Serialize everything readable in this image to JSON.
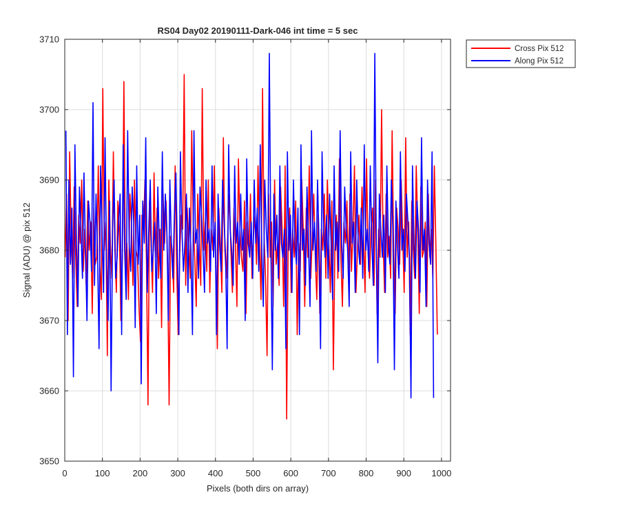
{
  "chart_data": {
    "type": "line",
    "title": "RS04 Day02 20190111-Dark-046 int time = 5 sec",
    "xlabel": "Pixels (both dirs on array)",
    "ylabel": "Signal (ADU) @ pix 512",
    "xlim": [
      0,
      1024
    ],
    "ylim": [
      3650,
      3710
    ],
    "xticks": [
      0,
      100,
      200,
      300,
      400,
      500,
      600,
      700,
      800,
      900,
      1000
    ],
    "yticks": [
      3650,
      3660,
      3670,
      3680,
      3690,
      3700,
      3710
    ],
    "grid": true,
    "legend_position": "outside-top-right",
    "series": [
      {
        "name": "Cross Pix 512",
        "color": "#ff0000",
        "x_start": 1,
        "x_step": 4,
        "values": [
          3679,
          3688,
          3670,
          3694,
          3682,
          3676,
          3689,
          3679,
          3672,
          3685,
          3681,
          3690,
          3677,
          3683,
          3675,
          3687,
          3680,
          3684,
          3671,
          3686,
          3678,
          3679,
          3692,
          3678,
          3673,
          3703,
          3680,
          3684,
          3665,
          3690,
          3681,
          3676,
          3694,
          3680,
          3674,
          3687,
          3683,
          3670,
          3679,
          3704,
          3677,
          3681,
          3673,
          3688,
          3684,
          3675,
          3690,
          3680,
          3679,
          3672,
          3667,
          3685,
          3683,
          3690,
          3678,
          3658,
          3687,
          3681,
          3674,
          3691,
          3679,
          3686,
          3676,
          3683,
          3669,
          3688,
          3681,
          3687,
          3678,
          3658,
          3682,
          3680,
          3674,
          3692,
          3678,
          3668,
          3679,
          3685,
          3683,
          3705,
          3675,
          3686,
          3681,
          3676,
          3697,
          3684,
          3679,
          3672,
          3688,
          3681,
          3675,
          3703,
          3680,
          3684,
          3677,
          3690,
          3674,
          3683,
          3680,
          3692,
          3678,
          3666,
          3686,
          3681,
          3674,
          3696,
          3680,
          3676,
          3683,
          3688,
          3680,
          3674,
          3686,
          3681,
          3672,
          3693,
          3683,
          3679,
          3677,
          3687,
          3671,
          3684,
          3680,
          3688,
          3676,
          3682,
          3685,
          3678,
          3692,
          3681,
          3673,
          3703,
          3682,
          3676,
          3665,
          3688,
          3679,
          3684,
          3672,
          3690,
          3678,
          3681,
          3675,
          3689,
          3683,
          3672,
          3692,
          3656,
          3681,
          3686,
          3674,
          3683,
          3679,
          3687,
          3668,
          3681,
          3677,
          3690,
          3683,
          3672,
          3686,
          3679,
          3692,
          3676,
          3682,
          3688,
          3679,
          3673,
          3685,
          3671,
          3683,
          3680,
          3688,
          3676,
          3690,
          3681,
          3674,
          3687,
          3663,
          3680,
          3685,
          3676,
          3693,
          3679,
          3672,
          3684,
          3681,
          3687,
          3676,
          3688,
          3677,
          3683,
          3692,
          3674,
          3680,
          3685,
          3678,
          3689,
          3682,
          3674,
          3693,
          3680,
          3676,
          3683,
          3686,
          3675,
          3690,
          3671,
          3683,
          3679,
          3700,
          3681,
          3674,
          3688,
          3679,
          3682,
          3676,
          3697,
          3680,
          3671,
          3686,
          3683,
          3678,
          3690,
          3682,
          3674,
          3696,
          3679,
          3684,
          3668,
          3687,
          3680,
          3676,
          3692,
          3683,
          3671,
          3689,
          3679,
          3680,
          3684,
          3672,
          3688,
          3679,
          3683,
          3676,
          3692,
          3681,
          3668
        ]
      },
      {
        "name": "Along Pix 512",
        "color": "#0000ff",
        "x_start": 3,
        "x_step": 4,
        "values": [
          3697,
          3668,
          3690,
          3678,
          3686,
          3662,
          3695,
          3681,
          3672,
          3689,
          3683,
          3676,
          3691,
          3680,
          3670,
          3687,
          3684,
          3677,
          3701,
          3675,
          3688,
          3680,
          3666,
          3692,
          3683,
          3674,
          3696,
          3678,
          3670,
          3687,
          3660,
          3683,
          3690,
          3676,
          3679,
          3684,
          3688,
          3668,
          3695,
          3680,
          3673,
          3697,
          3681,
          3677,
          3689,
          3684,
          3669,
          3692,
          3678,
          3685,
          3661,
          3687,
          3681,
          3696,
          3674,
          3683,
          3690,
          3677,
          3680,
          3684,
          3671,
          3689,
          3681,
          3676,
          3694,
          3680,
          3688,
          3683,
          3670,
          3690,
          3681,
          3676,
          3685,
          3691,
          3679,
          3668,
          3694,
          3683,
          3677,
          3681,
          3688,
          3674,
          3686,
          3680,
          3668,
          3697,
          3681,
          3683,
          3676,
          3689,
          3685,
          3680,
          3674,
          3690,
          3681,
          3683,
          3677,
          3692,
          3679,
          3684,
          3668,
          3688,
          3681,
          3677,
          3690,
          3684,
          3679,
          3666,
          3695,
          3683,
          3680,
          3675,
          3692,
          3681,
          3684,
          3678,
          3688,
          3680,
          3683,
          3670,
          3693,
          3681,
          3679,
          3684,
          3676,
          3690,
          3681,
          3686,
          3677,
          3695,
          3680,
          3672,
          3690,
          3683,
          3679,
          3708,
          3681,
          3663,
          3688,
          3680,
          3685,
          3676,
          3692,
          3681,
          3679,
          3683,
          3666,
          3694,
          3680,
          3685,
          3674,
          3690,
          3681,
          3678,
          3686,
          3668,
          3695,
          3680,
          3683,
          3675,
          3689,
          3681,
          3672,
          3697,
          3680,
          3684,
          3677,
          3690,
          3681,
          3666,
          3694,
          3683,
          3679,
          3685,
          3676,
          3688,
          3681,
          3673,
          3692,
          3680,
          3684,
          3677,
          3697,
          3681,
          3676,
          3689,
          3683,
          3680,
          3672,
          3694,
          3681,
          3684,
          3674,
          3690,
          3681,
          3678,
          3686,
          3676,
          3695,
          3680,
          3683,
          3677,
          3692,
          3681,
          3675,
          3708,
          3680,
          3664,
          3688,
          3683,
          3679,
          3685,
          3674,
          3692,
          3681,
          3678,
          3690,
          3683,
          3663,
          3687,
          3681,
          3676,
          3694,
          3680,
          3683,
          3677,
          3688,
          3684,
          3679,
          3659,
          3692,
          3681,
          3676,
          3687,
          3683,
          3674,
          3696,
          3680,
          3683,
          3672,
          3690,
          3681,
          3678,
          3694,
          3659
        ]
      }
    ]
  }
}
